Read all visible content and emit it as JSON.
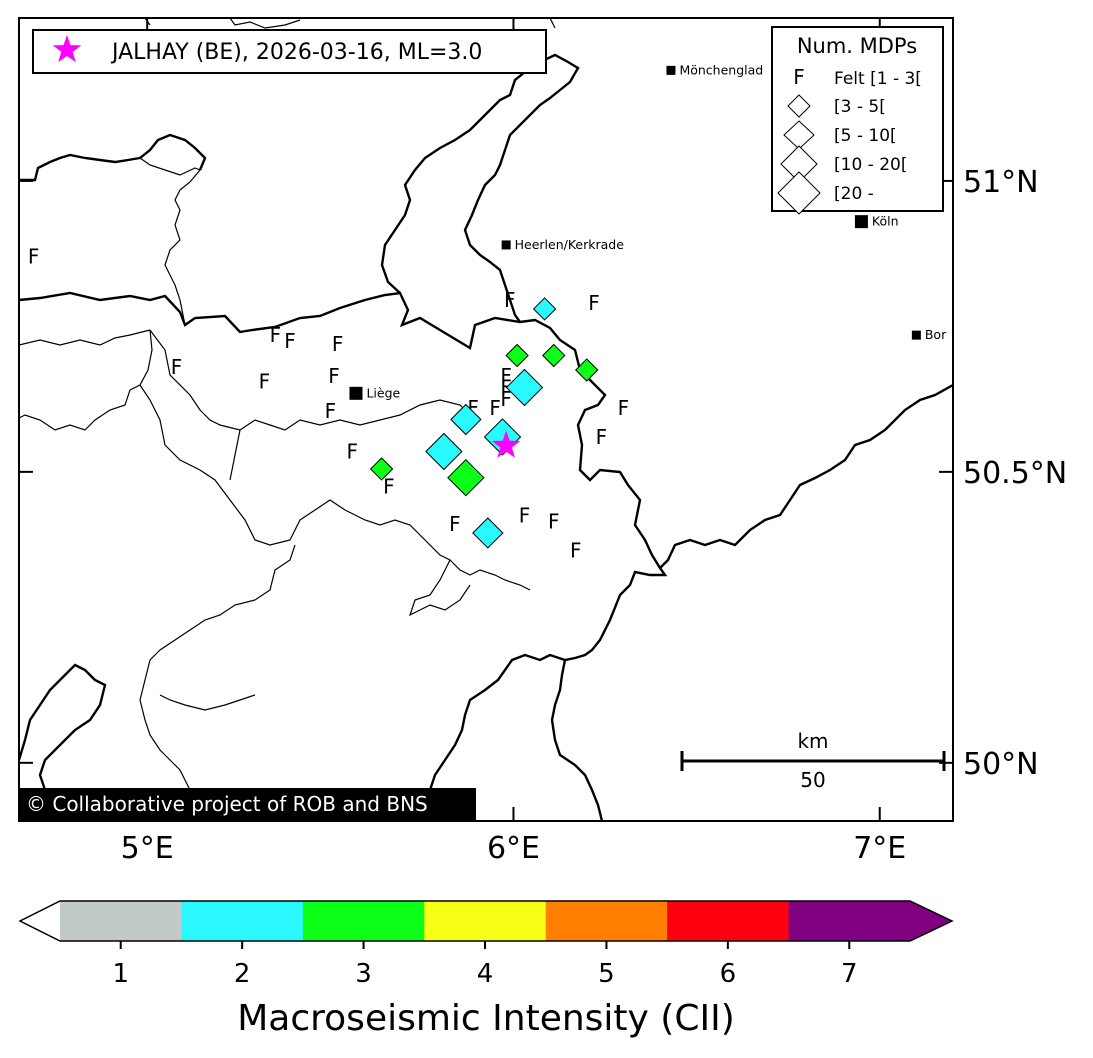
{
  "event": {
    "label": "JALHAY (BE), 2026-03-16, ML=3.0",
    "lon": 5.98,
    "lat": 50.545,
    "marker_color": "#ff00ff"
  },
  "map": {
    "lon_range": [
      4.65,
      7.2
    ],
    "lat_range": [
      49.9,
      51.28
    ],
    "lon_ticks": [
      {
        "v": 5,
        "label": "5°E"
      },
      {
        "v": 6,
        "label": "6°E"
      },
      {
        "v": 7,
        "label": "7°E"
      }
    ],
    "lat_ticks": [
      {
        "v": 51,
        "label": "51°N"
      },
      {
        "v": 50.5,
        "label": "50.5°N"
      },
      {
        "v": 50,
        "label": "50°N"
      }
    ]
  },
  "cities": [
    {
      "name": "Mönchenglad",
      "lon": 6.43,
      "lat": 51.19,
      "size": "small"
    },
    {
      "name": "Heerlen/Kerkrade",
      "lon": 5.98,
      "lat": 50.89,
      "size": "small"
    },
    {
      "name": "Liège",
      "lon": 5.57,
      "lat": 50.635,
      "size": "large"
    },
    {
      "name": "Köln",
      "lon": 6.95,
      "lat": 50.93,
      "size": "large"
    },
    {
      "name": "Bor",
      "lon": 7.1,
      "lat": 50.735,
      "size": "small"
    }
  ],
  "felt": {
    "letter": "F",
    "points": [
      {
        "lon": 4.69,
        "lat": 50.87
      },
      {
        "lon": 6.22,
        "lat": 50.79
      },
      {
        "lon": 5.99,
        "lat": 50.795
      },
      {
        "lon": 5.35,
        "lat": 50.735
      },
      {
        "lon": 5.39,
        "lat": 50.725
      },
      {
        "lon": 5.52,
        "lat": 50.72
      },
      {
        "lon": 5.08,
        "lat": 50.68
      },
      {
        "lon": 5.32,
        "lat": 50.655
      },
      {
        "lon": 5.51,
        "lat": 50.665
      },
      {
        "lon": 5.5,
        "lat": 50.605
      },
      {
        "lon": 5.98,
        "lat": 50.665
      },
      {
        "lon": 5.98,
        "lat": 50.645
      },
      {
        "lon": 5.98,
        "lat": 50.625
      },
      {
        "lon": 5.89,
        "lat": 50.61
      },
      {
        "lon": 5.95,
        "lat": 50.61
      },
      {
        "lon": 6.3,
        "lat": 50.61
      },
      {
        "lon": 6.24,
        "lat": 50.56
      },
      {
        "lon": 5.56,
        "lat": 50.535
      },
      {
        "lon": 5.66,
        "lat": 50.475
      },
      {
        "lon": 5.84,
        "lat": 50.41
      },
      {
        "lon": 6.03,
        "lat": 50.425
      },
      {
        "lon": 6.11,
        "lat": 50.415
      },
      {
        "lon": 6.17,
        "lat": 50.365
      }
    ]
  },
  "intensity_points": [
    {
      "lon": 6.085,
      "lat": 50.78,
      "cii": 2,
      "mdp": "[3 - 5["
    },
    {
      "lon": 6.01,
      "lat": 50.7,
      "cii": 3,
      "mdp": "[3 - 5["
    },
    {
      "lon": 6.11,
      "lat": 50.7,
      "cii": 3,
      "mdp": "[3 - 5["
    },
    {
      "lon": 6.2,
      "lat": 50.675,
      "cii": 3,
      "mdp": "[3 - 5["
    },
    {
      "lon": 6.03,
      "lat": 50.645,
      "cii": 2,
      "mdp": "[10 - 20["
    },
    {
      "lon": 5.87,
      "lat": 50.59,
      "cii": 2,
      "mdp": "[5 - 10["
    },
    {
      "lon": 5.97,
      "lat": 50.56,
      "cii": 2,
      "mdp": "[10 - 20["
    },
    {
      "lon": 5.81,
      "lat": 50.535,
      "cii": 2,
      "mdp": "[10 - 20["
    },
    {
      "lon": 5.87,
      "lat": 50.49,
      "cii": 3,
      "mdp": "[10 - 20["
    },
    {
      "lon": 5.64,
      "lat": 50.505,
      "cii": 3,
      "mdp": "[3 - 5["
    },
    {
      "lon": 5.93,
      "lat": 50.395,
      "cii": 2,
      "mdp": "[5 - 10["
    }
  ],
  "mdp_legend": {
    "title": "Num. MDPs",
    "items": [
      {
        "symbol": "F",
        "label": "Felt [1 - 3["
      },
      {
        "symbol": "diamond",
        "label": "[3 - 5["
      },
      {
        "symbol": "diamond",
        "label": "[5 - 10["
      },
      {
        "symbol": "diamond",
        "label": "[10 - 20["
      },
      {
        "symbol": "diamond",
        "label": "[20 -"
      }
    ]
  },
  "scalebar": {
    "unit": "km",
    "value": "50"
  },
  "copyright": "© Collaborative project of ROB and BNS",
  "colorbar": {
    "title": "Macroseismic Intensity (CII)",
    "levels": [
      {
        "label": "1",
        "color": "#c1c9c9"
      },
      {
        "label": "2",
        "color": "#2af8ff"
      },
      {
        "label": "3",
        "color": "#0cff17"
      },
      {
        "label": "4",
        "color": "#f8ff17"
      },
      {
        "label": "5",
        "color": "#ff7f00"
      },
      {
        "label": "6",
        "color": "#ff0011"
      },
      {
        "label": "7",
        "color": "#800080"
      }
    ],
    "under_color": "#ffffff",
    "over_color": "#800080"
  }
}
